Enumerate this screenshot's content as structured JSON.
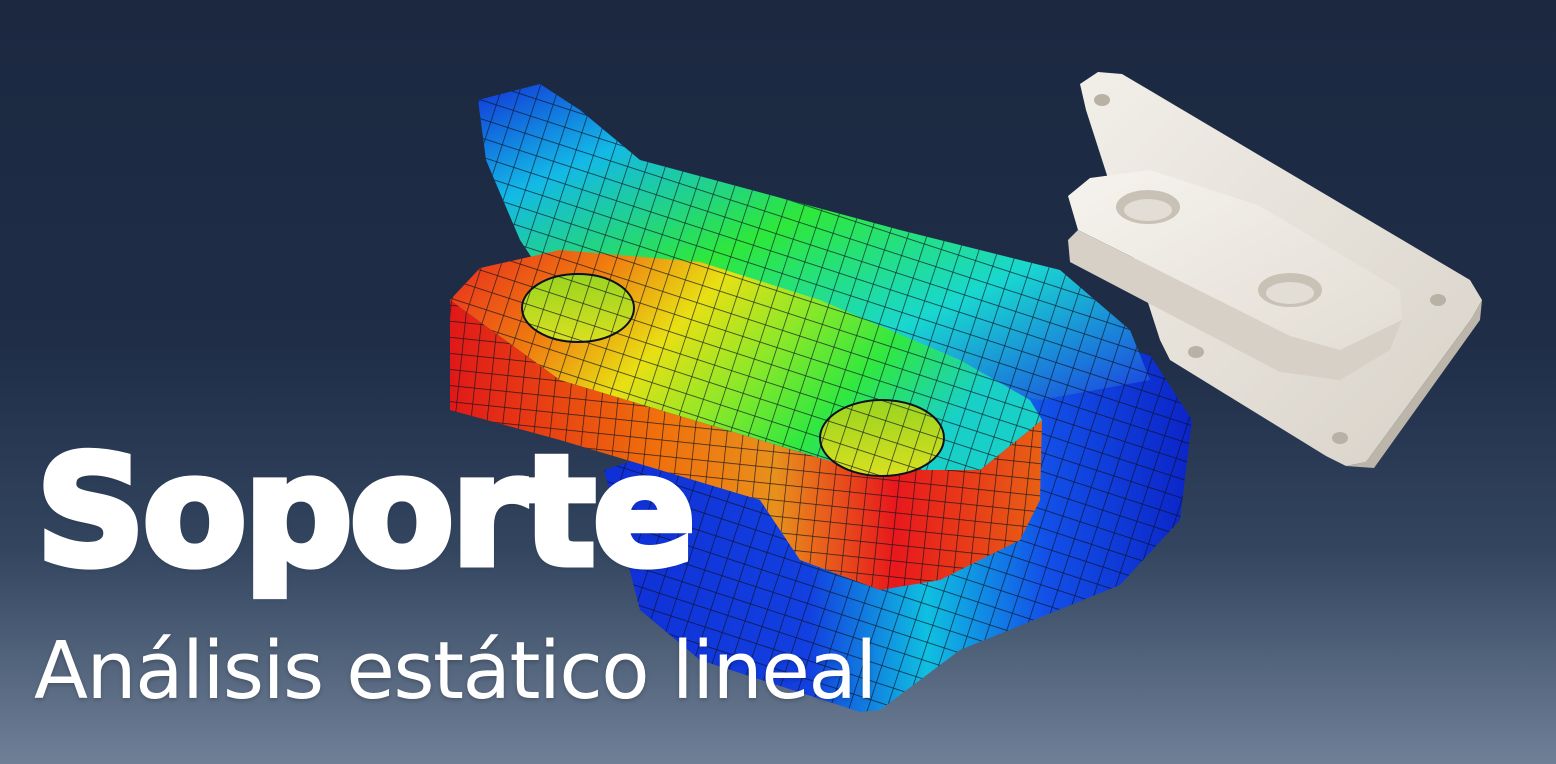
{
  "title": "Soporte",
  "subtitle": "Análisis estático lineal",
  "colors": {
    "background_top": "#1b2840",
    "background_bottom": "#6f8097",
    "text": "#ffffff",
    "stress_low": "#1030d0",
    "stress_mid": "#2ee83a",
    "stress_high": "#e8141c",
    "solid_model": "#ece8e0"
  }
}
